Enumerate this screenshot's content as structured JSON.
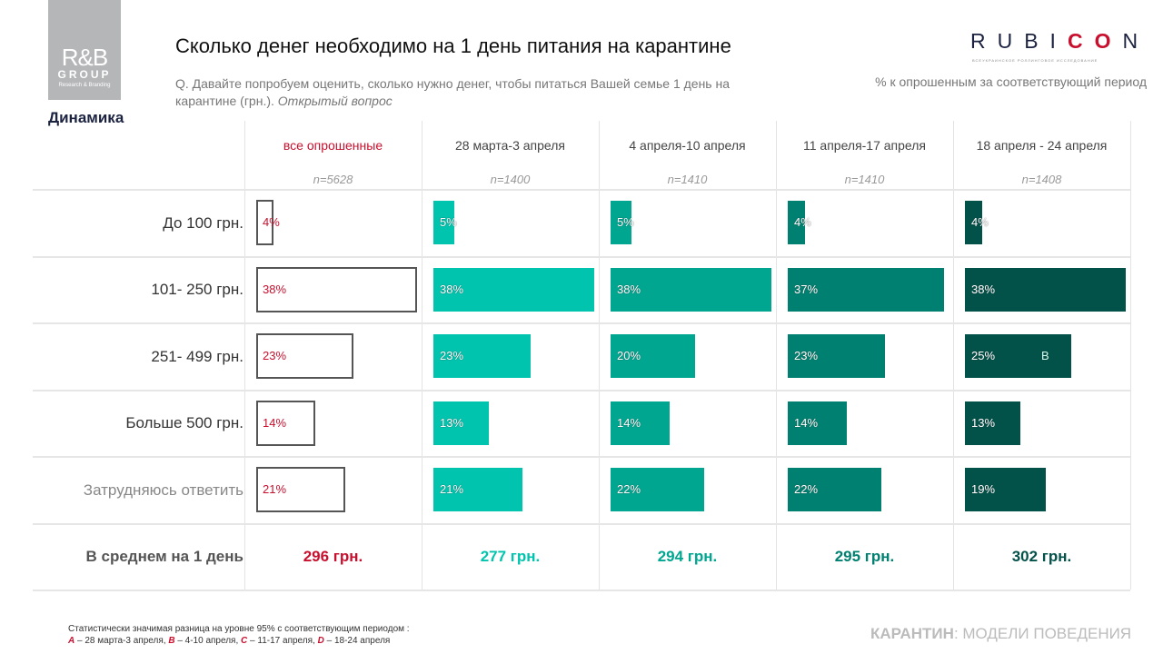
{
  "logo": {
    "text": "R&B",
    "group": "GROUP",
    "sub": "Research & Branding"
  },
  "section": "Динамика",
  "title": "Сколько денег необходимо на 1 день питания на карантине",
  "question": "Q. Давайте попробуем оценить, сколько нужно денег, чтобы питаться Вашей семье 1 день на карантине (грн.).",
  "question_note": "Открытый вопрос",
  "rubicon": {
    "a": "RUBI",
    "b": "CO",
    "c": "N",
    "sub": "ВСЕУКРАИНСКОЕ РОЛЛИНГОВОЕ ИССЛЕДОВАНИЕ"
  },
  "pct_note": "% к опрошенным за соответствующий период",
  "chart_data": {
    "type": "bar",
    "categories": [
      "До 100 грн.",
      "101- 250 грн.",
      "251- 499 грн.",
      "Больше 500 грн.",
      "Затрудняюсь ответить"
    ],
    "series": [
      {
        "name": "все опрошенные",
        "n": "n=5628",
        "values": [
          4,
          38,
          23,
          14,
          21
        ],
        "labels": [
          "4%",
          "38%",
          "23%",
          "14%",
          "21%"
        ],
        "sig": [
          "",
          "",
          "",
          "",
          ""
        ],
        "average": "296 грн.",
        "color": "#c8102e"
      },
      {
        "name": "28 марта-3 апреля",
        "n": "n=1400",
        "values": [
          5,
          38,
          23,
          13,
          21
        ],
        "labels": [
          "5%",
          "38%",
          "23%",
          "13%",
          "21%"
        ],
        "sig": [
          "",
          "",
          "",
          "",
          ""
        ],
        "average": "277 грн.",
        "color": "#00c4ae"
      },
      {
        "name": "4 апреля-10 апреля",
        "n": "n=1410",
        "values": [
          5,
          38,
          20,
          14,
          22
        ],
        "labels": [
          "5%",
          "38%",
          "20%",
          "14%",
          "22%"
        ],
        "sig": [
          "",
          "",
          "",
          "",
          ""
        ],
        "average": "294 грн.",
        "color": "#00a690"
      },
      {
        "name": "11 апреля-17 апреля",
        "n": "n=1410",
        "values": [
          4,
          37,
          23,
          14,
          22
        ],
        "labels": [
          "4%",
          "37%",
          "23%",
          "14%",
          "22%"
        ],
        "sig": [
          "",
          "",
          "",
          "",
          ""
        ],
        "average": "295 грн.",
        "color": "#008070"
      },
      {
        "name": "18 апреля - 24 апреля",
        "n": "n=1408",
        "values": [
          4,
          38,
          25,
          13,
          19
        ],
        "labels": [
          "4%",
          "38%",
          "25%",
          "13%",
          "19%"
        ],
        "sig": [
          "",
          "",
          "B",
          "",
          ""
        ],
        "average": "302 грн.",
        "color": "#02524a"
      }
    ],
    "average_label": "В среднем на 1 день"
  },
  "footnote": {
    "line1": "Статистически значимая разница на уровне 95% с соответствующим периодом :",
    "A": "A",
    "a": " – 28 марта-3 апреля, ",
    "B": "B",
    "b": " – 4-10 апреля, ",
    "C": "C",
    "c": "  – 11-17 апреля, ",
    "D": "D",
    "d": " – 18-24 апреля"
  },
  "brand": {
    "bold": "КАРАНТИН",
    "rest": ": МОДЕЛИ ПОВЕДЕНИЯ"
  }
}
